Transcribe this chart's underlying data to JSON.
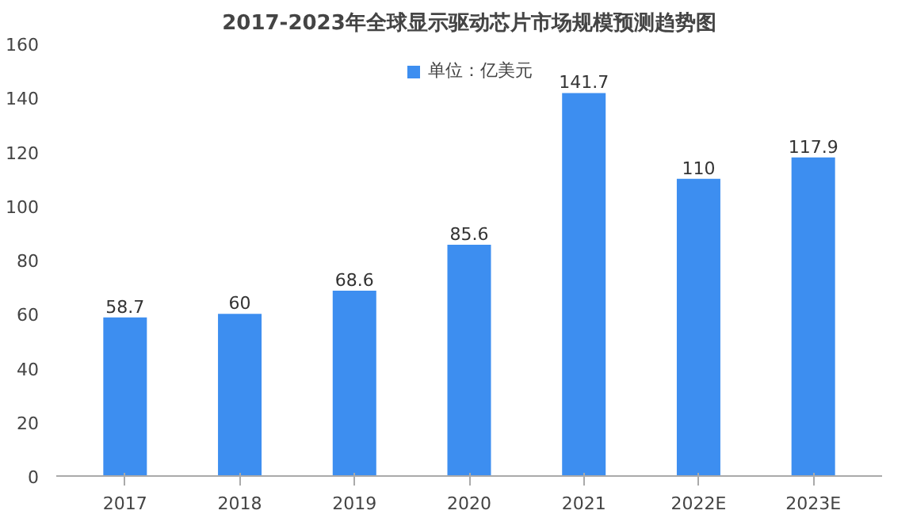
{
  "chart_data": {
    "type": "bar",
    "title": "2017-2023年全球显示驱动芯片市场规模预测趋势图",
    "categories": [
      "2017",
      "2018",
      "2019",
      "2020",
      "2021",
      "2022E",
      "2023E"
    ],
    "series": [
      {
        "name": "单位：亿美元",
        "color": "#3d8ef0",
        "values": [
          58.7,
          60,
          68.6,
          85.6,
          141.7,
          110,
          117.9
        ]
      }
    ],
    "ylim": [
      0,
      160
    ],
    "yticks": [
      0,
      20,
      40,
      60,
      80,
      100,
      120,
      140,
      160
    ],
    "grid": false,
    "legend": "top",
    "data_labels": true
  }
}
